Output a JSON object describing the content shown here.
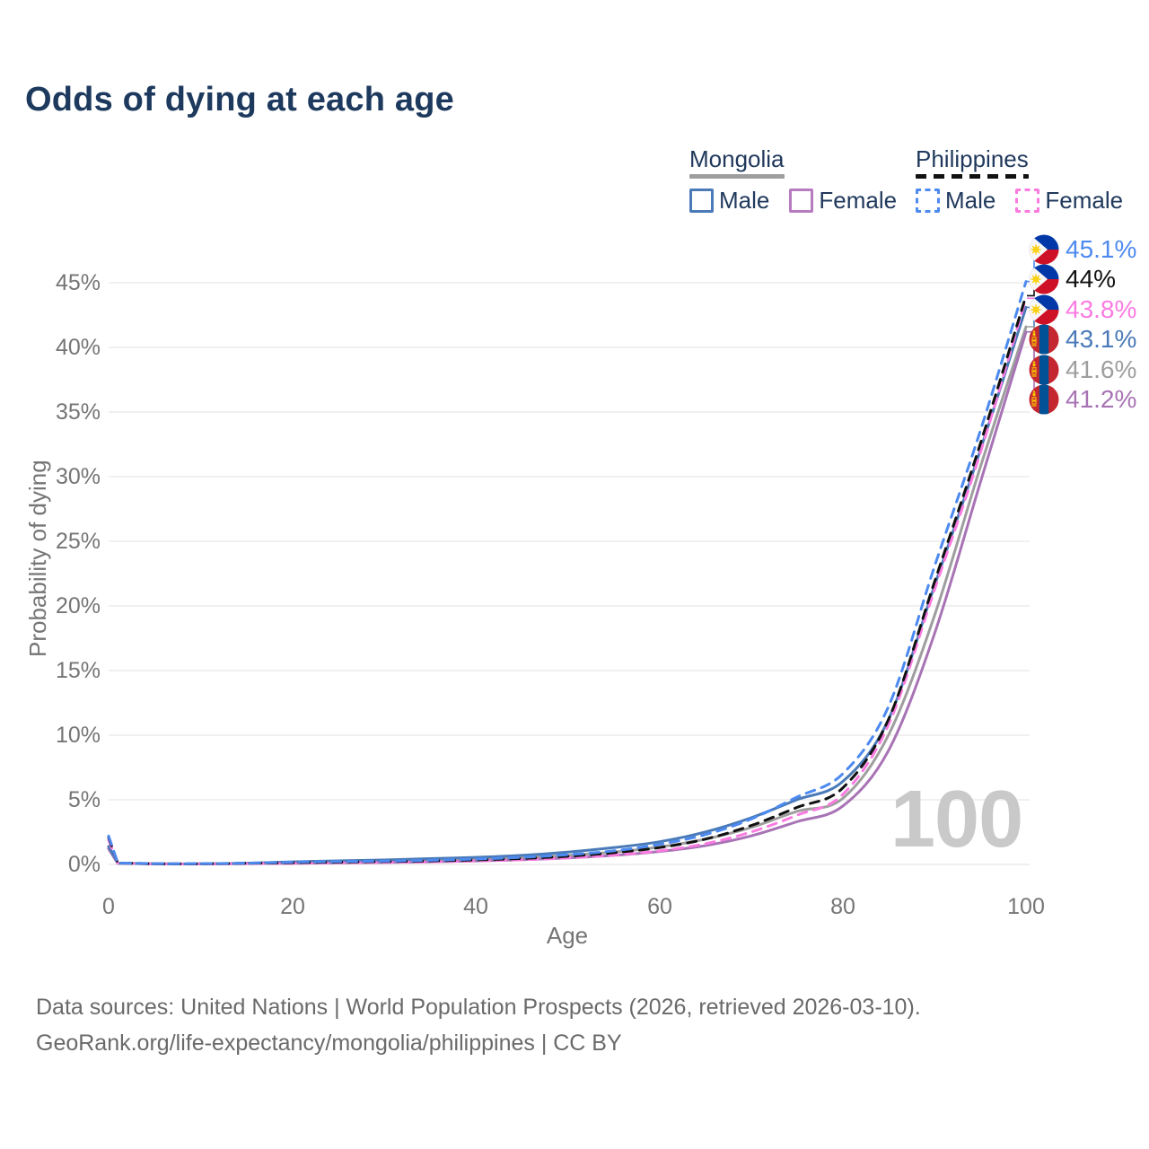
{
  "title": "Odds of dying at each age",
  "colors": {
    "title_text": "#1d3a5e",
    "axis_text": "#757575",
    "gridline": "#e8e8e8",
    "watermark": "#c9c9c9",
    "footer_text": "#6a6a6a"
  },
  "legend": {
    "groups": [
      {
        "label": "Mongolia",
        "line_style": "solid",
        "underline_color": "#9e9e9e",
        "items": [
          {
            "label": "Male",
            "color": "#4a7ab8"
          },
          {
            "label": "Female",
            "color": "#b77cc0"
          }
        ]
      },
      {
        "label": "Philippines",
        "line_style": "dashed",
        "underline_color": "#111111",
        "items": [
          {
            "label": "Male",
            "color": "#4d8af0"
          },
          {
            "label": "Female",
            "color": "#fb7be1"
          }
        ]
      }
    ]
  },
  "watermark": "100",
  "footer": {
    "line1": "Data sources: United Nations | World Population Prospects (2026, retrieved 2026-03-10).",
    "line2": "GeoRank.org/life-expectancy/mongolia/philippines | CC BY"
  },
  "chart_data": {
    "type": "line",
    "title": "Odds of dying at each age",
    "xlabel": "Age",
    "ylabel": "Probability of dying",
    "xlim": [
      0,
      100
    ],
    "ylim_percent": [
      0,
      47
    ],
    "grid": "horizontal",
    "legend_position": "top-right",
    "xticks": [
      0,
      20,
      40,
      60,
      80,
      100
    ],
    "xtick_labels": [
      "0",
      "20",
      "40",
      "60",
      "80",
      "100"
    ],
    "yticks_percent": [
      0,
      5,
      10,
      15,
      20,
      25,
      30,
      35,
      40,
      45
    ],
    "ytick_labels": [
      "0%",
      "5%",
      "10%",
      "15%",
      "20%",
      "25%",
      "30%",
      "35%",
      "40%",
      "45%"
    ],
    "x_ages": [
      0,
      1,
      5,
      10,
      15,
      20,
      25,
      30,
      35,
      40,
      45,
      50,
      55,
      60,
      65,
      70,
      75,
      80,
      85,
      90,
      95,
      100
    ],
    "values_unit": "percent",
    "series": [
      {
        "name": "Philippines Male",
        "country": "Philippines",
        "sex": "Male",
        "color": "#4d8af0",
        "dash": true,
        "end_label": "45.1%",
        "end_value_percent": 45.1,
        "flag": "philippines",
        "values": [
          2.2,
          0.12,
          0.06,
          0.06,
          0.1,
          0.18,
          0.22,
          0.26,
          0.32,
          0.42,
          0.55,
          0.75,
          1.05,
          1.55,
          2.3,
          3.5,
          5.2,
          7.0,
          12.2,
          23.0,
          33.5,
          45.1
        ]
      },
      {
        "name": "Philippines Both sexes",
        "country": "Philippines",
        "sex": "Both",
        "color": "#111111",
        "dash": true,
        "end_label": "44%",
        "end_value_percent": 44.0,
        "flag": "philippines",
        "values": [
          2.1,
          0.11,
          0.05,
          0.05,
          0.09,
          0.14,
          0.18,
          0.22,
          0.27,
          0.35,
          0.46,
          0.63,
          0.9,
          1.3,
          1.95,
          3.0,
          4.4,
          5.9,
          11.2,
          21.8,
          32.5,
          44.0
        ]
      },
      {
        "name": "Philippines Female",
        "country": "Philippines",
        "sex": "Female",
        "color": "#fb7be1",
        "dash": true,
        "end_label": "43.8%",
        "end_value_percent": 43.8,
        "flag": "philippines",
        "values": [
          1.9,
          0.1,
          0.05,
          0.04,
          0.07,
          0.1,
          0.13,
          0.16,
          0.2,
          0.27,
          0.36,
          0.5,
          0.72,
          1.05,
          1.6,
          2.5,
          3.8,
          5.4,
          10.8,
          21.2,
          31.8,
          43.8
        ]
      },
      {
        "name": "Mongolia Male",
        "country": "Mongolia",
        "sex": "Male",
        "color": "#4a7ab8",
        "dash": false,
        "end_label": "43.1%",
        "end_value_percent": 43.1,
        "flag": "mongolia",
        "values": [
          1.4,
          0.1,
          0.05,
          0.05,
          0.1,
          0.2,
          0.28,
          0.35,
          0.45,
          0.55,
          0.7,
          0.95,
          1.3,
          1.75,
          2.5,
          3.6,
          5.0,
          6.4,
          11.2,
          21.5,
          32.0,
          43.1
        ]
      },
      {
        "name": "Mongolia Both sexes",
        "country": "Mongolia",
        "sex": "Both",
        "color": "#9e9e9e",
        "dash": false,
        "end_label": "41.6%",
        "end_value_percent": 41.6,
        "flag": "mongolia",
        "values": [
          1.3,
          0.1,
          0.05,
          0.04,
          0.08,
          0.15,
          0.2,
          0.26,
          0.33,
          0.42,
          0.53,
          0.7,
          0.95,
          1.35,
          1.95,
          2.85,
          4.1,
          5.1,
          10.0,
          19.2,
          30.7,
          41.6
        ]
      },
      {
        "name": "Mongolia Female",
        "country": "Mongolia",
        "sex": "Female",
        "color": "#a873b5",
        "dash": false,
        "end_label": "41.2%",
        "end_value_percent": 41.2,
        "flag": "mongolia",
        "values": [
          1.2,
          0.09,
          0.04,
          0.04,
          0.06,
          0.09,
          0.12,
          0.15,
          0.2,
          0.27,
          0.36,
          0.5,
          0.7,
          1.0,
          1.45,
          2.2,
          3.3,
          4.5,
          8.8,
          17.8,
          29.5,
          41.2
        ]
      }
    ]
  }
}
